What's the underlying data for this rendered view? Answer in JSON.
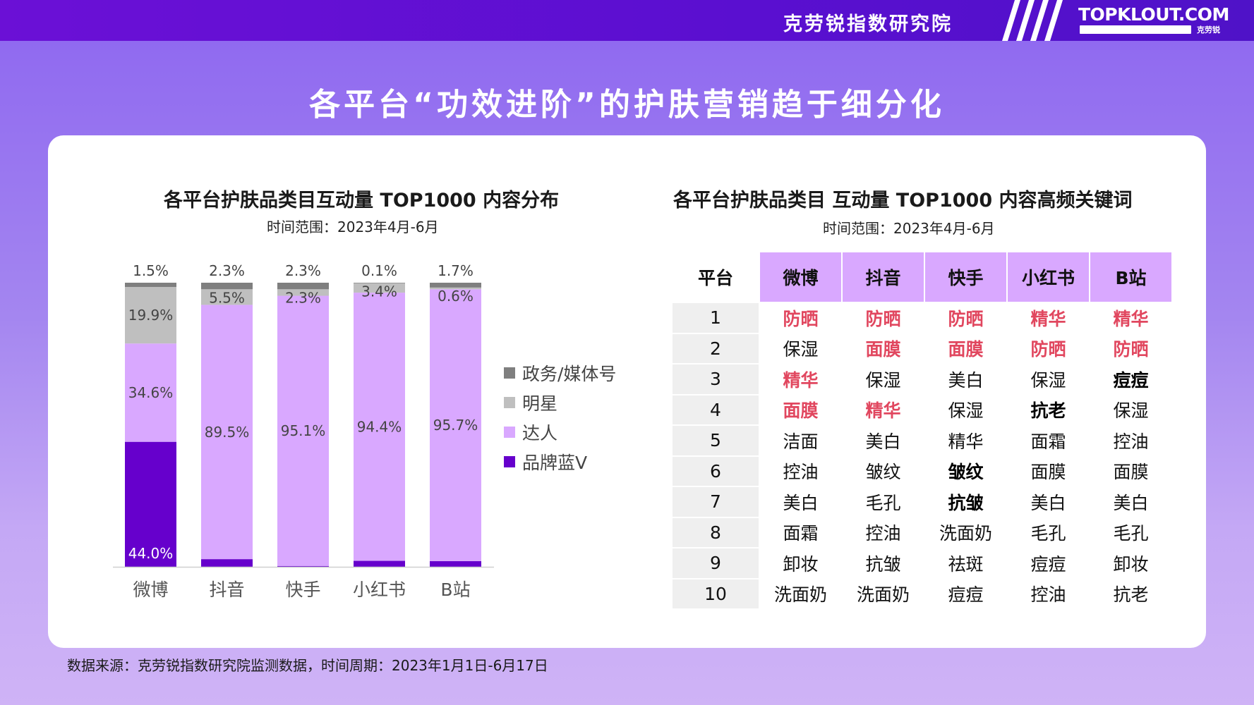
{
  "header": {
    "brand_cn": "克劳锐指数研究院",
    "logo_en": "TOPKLOUT.COM",
    "logo_cn": "克劳锐"
  },
  "title": "各平台“功效进阶”的护肤营销趋于细分化",
  "left_panel": {
    "title": "各平台护肤品类目互动量 TOP1000 内容分布",
    "subtitle": "时间范围：2023年4月-6月"
  },
  "right_panel": {
    "title": "各平台护肤品类目 互动量 TOP1000 内容高频关键词",
    "subtitle": "时间范围：2023年4月-6月"
  },
  "chart_data": {
    "type": "bar",
    "stacked": true,
    "categories": [
      "微博",
      "抖音",
      "快手",
      "小红书",
      "B站"
    ],
    "series": [
      {
        "name": "品牌蓝V",
        "color": "#6600cc",
        "values": [
          44.0,
          2.7,
          0.3,
          2.1,
          2.0
        ]
      },
      {
        "name": "达人",
        "color": "#d9a8ff",
        "values": [
          34.6,
          89.5,
          95.1,
          94.4,
          95.7
        ]
      },
      {
        "name": "明星",
        "color": "#bfbfbf",
        "values": [
          19.9,
          5.5,
          2.3,
          3.4,
          0.6
        ]
      },
      {
        "name": "政务/媒体号",
        "color": "#7f7f7f",
        "values": [
          1.5,
          2.3,
          2.3,
          0.1,
          1.7
        ]
      }
    ],
    "ylim": [
      0,
      100
    ],
    "legend_position": "right",
    "grid": false
  },
  "keyword_table": {
    "header_label": "平台",
    "platforms": [
      "微博",
      "抖音",
      "快手",
      "小红书",
      "B站"
    ],
    "rows": [
      {
        "rank": "1",
        "cells": [
          {
            "t": "防晒",
            "s": "red"
          },
          {
            "t": "防晒",
            "s": "red"
          },
          {
            "t": "防晒",
            "s": "red"
          },
          {
            "t": "精华",
            "s": "red"
          },
          {
            "t": "精华",
            "s": "red"
          }
        ]
      },
      {
        "rank": "2",
        "cells": [
          {
            "t": "保湿",
            "s": ""
          },
          {
            "t": "面膜",
            "s": "red"
          },
          {
            "t": "面膜",
            "s": "red"
          },
          {
            "t": "防晒",
            "s": "red"
          },
          {
            "t": "防晒",
            "s": "red"
          }
        ]
      },
      {
        "rank": "3",
        "cells": [
          {
            "t": "精华",
            "s": "red"
          },
          {
            "t": "保湿",
            "s": ""
          },
          {
            "t": "美白",
            "s": ""
          },
          {
            "t": "保湿",
            "s": ""
          },
          {
            "t": "痘痘",
            "s": "bold"
          }
        ]
      },
      {
        "rank": "4",
        "cells": [
          {
            "t": "面膜",
            "s": "red"
          },
          {
            "t": "精华",
            "s": "red"
          },
          {
            "t": "保湿",
            "s": ""
          },
          {
            "t": "抗老",
            "s": "bold"
          },
          {
            "t": "保湿",
            "s": ""
          }
        ]
      },
      {
        "rank": "5",
        "cells": [
          {
            "t": "洁面",
            "s": ""
          },
          {
            "t": "美白",
            "s": ""
          },
          {
            "t": "精华",
            "s": ""
          },
          {
            "t": "面霜",
            "s": ""
          },
          {
            "t": "控油",
            "s": ""
          }
        ]
      },
      {
        "rank": "6",
        "cells": [
          {
            "t": "控油",
            "s": ""
          },
          {
            "t": "皱纹",
            "s": ""
          },
          {
            "t": "皱纹",
            "s": "bold"
          },
          {
            "t": "面膜",
            "s": ""
          },
          {
            "t": "面膜",
            "s": ""
          }
        ]
      },
      {
        "rank": "7",
        "cells": [
          {
            "t": "美白",
            "s": ""
          },
          {
            "t": "毛孔",
            "s": ""
          },
          {
            "t": "抗皱",
            "s": "bold"
          },
          {
            "t": "美白",
            "s": ""
          },
          {
            "t": "美白",
            "s": ""
          }
        ]
      },
      {
        "rank": "8",
        "cells": [
          {
            "t": "面霜",
            "s": ""
          },
          {
            "t": "控油",
            "s": ""
          },
          {
            "t": "洗面奶",
            "s": ""
          },
          {
            "t": "毛孔",
            "s": ""
          },
          {
            "t": "毛孔",
            "s": ""
          }
        ]
      },
      {
        "rank": "9",
        "cells": [
          {
            "t": "卸妆",
            "s": ""
          },
          {
            "t": "抗皱",
            "s": ""
          },
          {
            "t": "祛斑",
            "s": ""
          },
          {
            "t": "痘痘",
            "s": ""
          },
          {
            "t": "卸妆",
            "s": ""
          }
        ]
      },
      {
        "rank": "10",
        "cells": [
          {
            "t": "洗面奶",
            "s": ""
          },
          {
            "t": "洗面奶",
            "s": ""
          },
          {
            "t": "痘痘",
            "s": ""
          },
          {
            "t": "控油",
            "s": ""
          },
          {
            "t": "抗老",
            "s": ""
          }
        ]
      }
    ]
  },
  "source": "数据来源：克劳锐指数研究院监测数据，时间周期：2023年1月1日-6月17日"
}
